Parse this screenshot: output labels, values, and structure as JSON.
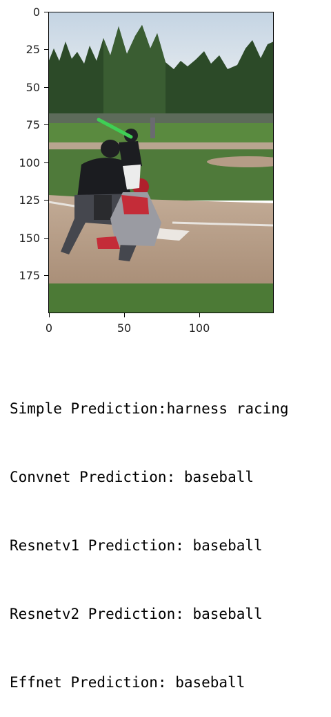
{
  "figure": {
    "y_ticks": [
      "0",
      "25",
      "50",
      "75",
      "100",
      "125",
      "150",
      "175"
    ],
    "x_ticks": [
      "0",
      "50",
      "100"
    ],
    "image_description": "baseball batter, catcher and umpire at home plate",
    "colors": {
      "sky": "#cfdde8",
      "grass": "#4f7a3a",
      "dirt": "#b59c86",
      "trees": "#2c4a28"
    }
  },
  "predictions": [
    "Simple Prediction:harness racing",
    "Convnet Prediction: baseball",
    "Resnetv1 Prediction: baseball",
    "Resnetv2 Prediction: baseball",
    "Effnet Prediction: baseball"
  ]
}
